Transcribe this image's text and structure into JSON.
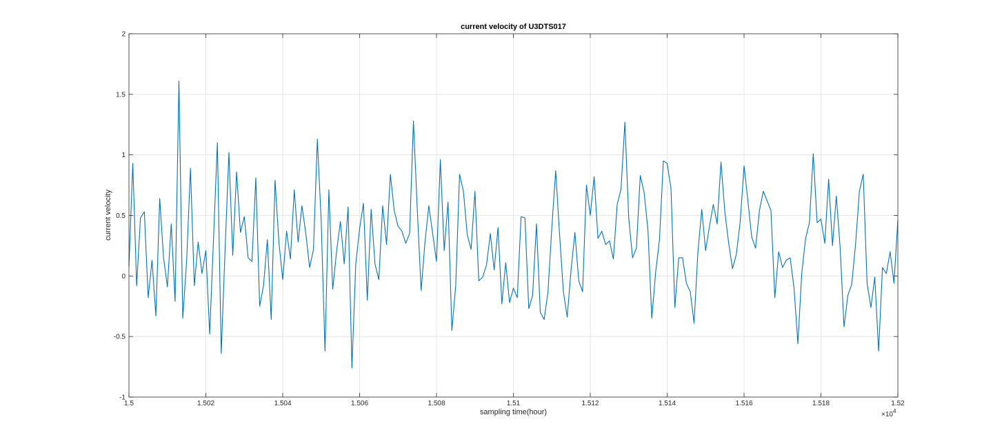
{
  "chart_data": {
    "type": "line",
    "title": "current velocity of U3DTS017",
    "xlabel": "sampling time(hour)",
    "ylabel": "current velocity",
    "x_scale_note": "×10",
    "x_scale_exponent": "4",
    "xlim": [
      1.5,
      1.52
    ],
    "ylim": [
      -1,
      2
    ],
    "xticks": [
      1.5,
      1.502,
      1.504,
      1.506,
      1.508,
      1.51,
      1.512,
      1.514,
      1.516,
      1.518,
      1.52
    ],
    "xtick_labels": [
      "1.5",
      "1.502",
      "1.504",
      "1.506",
      "1.508",
      "1.51",
      "1.512",
      "1.514",
      "1.516",
      "1.518",
      "1.52"
    ],
    "yticks": [
      -1,
      -0.5,
      0,
      0.5,
      1,
      1.5,
      2
    ],
    "ytick_labels": [
      "-1",
      "-0.5",
      "0",
      "0.5",
      "1",
      "1.5",
      "2"
    ],
    "grid": true,
    "series_color": "#0072BD",
    "series": [
      {
        "x_start": 1.5,
        "x_step": 0.0001,
        "values": [
          0.08,
          0.93,
          -0.08,
          0.48,
          0.53,
          -0.18,
          0.13,
          -0.33,
          0.64,
          0.15,
          -0.09,
          0.43,
          -0.21,
          1.61,
          -0.35,
          0.12,
          0.89,
          -0.08,
          0.28,
          0.02,
          0.21,
          -0.48,
          0.31,
          1.1,
          -0.64,
          0.21,
          1.02,
          0.17,
          0.86,
          0.36,
          0.49,
          0.15,
          0.12,
          0.81,
          -0.25,
          -0.08,
          0.3,
          -0.36,
          0.79,
          0.28,
          -0.03,
          0.37,
          0.14,
          0.71,
          0.28,
          0.58,
          0.35,
          0.07,
          0.22,
          1.13,
          0.46,
          -0.62,
          0.71,
          -0.11,
          0.2,
          0.45,
          0.1,
          0.57,
          -0.76,
          0.1,
          0.39,
          0.6,
          -0.2,
          0.55,
          0.1,
          -0.03,
          0.58,
          0.26,
          0.84,
          0.54,
          0.41,
          0.37,
          0.27,
          0.35,
          1.28,
          0.55,
          -0.12,
          0.28,
          0.58,
          0.35,
          0.12,
          0.96,
          0.21,
          0.61,
          -0.45,
          -0.08,
          0.84,
          0.7,
          0.34,
          0.22,
          0.7,
          -0.04,
          -0.01,
          0.09,
          0.35,
          0.05,
          0.4,
          -0.23,
          0.11,
          -0.22,
          -0.1,
          -0.18,
          0.49,
          0.48,
          -0.27,
          -0.16,
          0.43,
          -0.3,
          -0.36,
          -0.13,
          0.4,
          0.87,
          0.35,
          -0.13,
          -0.34,
          0.05,
          0.36,
          -0.04,
          -0.13,
          0.75,
          0.5,
          0.82,
          0.31,
          0.37,
          0.26,
          0.29,
          0.14,
          0.59,
          0.72,
          1.27,
          0.48,
          0.15,
          0.23,
          0.83,
          0.69,
          0.38,
          -0.35,
          0.03,
          0.3,
          0.95,
          0.93,
          0.72,
          -0.26,
          0.15,
          0.15,
          -0.06,
          -0.13,
          -0.39,
          0.2,
          0.55,
          0.21,
          0.41,
          0.59,
          0.43,
          0.94,
          0.53,
          0.27,
          0.06,
          0.18,
          0.45,
          0.91,
          0.62,
          0.32,
          0.23,
          0.54,
          0.7,
          0.62,
          0.54,
          -0.18,
          0.2,
          0.07,
          0.13,
          0.15,
          -0.1,
          -0.56,
          0.02,
          0.31,
          0.44,
          1.01,
          0.44,
          0.47,
          0.27,
          0.8,
          0.25,
          0.66,
          0.23,
          -0.42,
          -0.16,
          -0.07,
          0.26,
          0.7,
          0.84,
          -0.06,
          -0.26,
          -0.01,
          -0.62,
          0.07,
          0.02,
          0.2,
          -0.06,
          0.46
        ]
      }
    ]
  }
}
